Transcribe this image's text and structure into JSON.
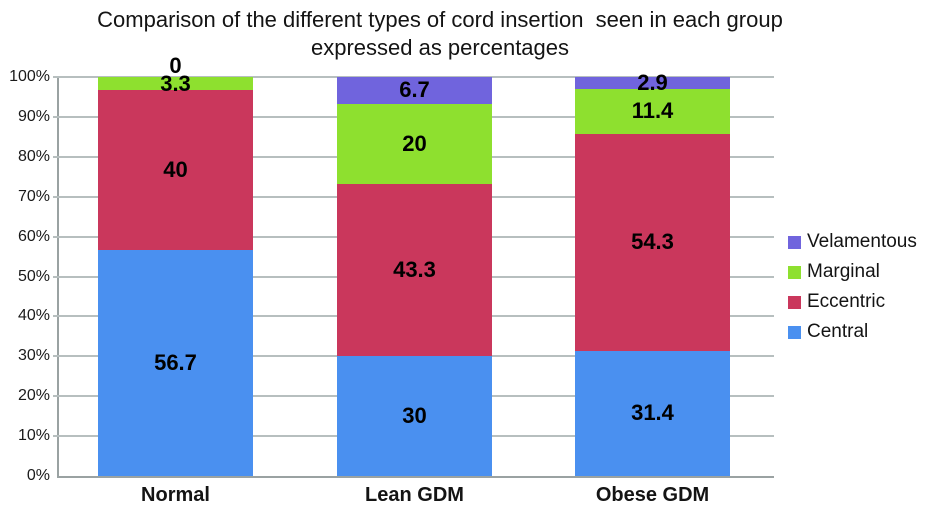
{
  "figure": {
    "title_lines": [
      "Comparison of the different types of cord insertion  seen in each group",
      "expressed as percentages"
    ]
  },
  "chart_data": {
    "type": "bar",
    "stacked": true,
    "units": "percent",
    "title": "Comparison of the different types of cord insertion seen in each group expressed as percentages",
    "categories": [
      "Normal",
      "Lean GDM",
      "Obese GDM"
    ],
    "series": [
      {
        "name": "Central",
        "color": "#4a90f0",
        "values": [
          56.7,
          30,
          31.4
        ]
      },
      {
        "name": "Eccentric",
        "color": "#ca375c",
        "values": [
          40,
          43.3,
          54.3
        ]
      },
      {
        "name": "Marginal",
        "color": "#8ee02f",
        "values": [
          3.3,
          20,
          11.4
        ]
      },
      {
        "name": "Velamentous",
        "color": "#7064dd",
        "values": [
          0,
          6.7,
          2.9
        ]
      }
    ],
    "ylim": [
      0,
      100
    ],
    "y_tick_step": 10,
    "y_ticks": [
      "0%",
      "10%",
      "20%",
      "30%",
      "40%",
      "50%",
      "60%",
      "70%",
      "80%",
      "90%",
      "100%"
    ],
    "grid": true,
    "legend": {
      "position": "right",
      "order": [
        "Velamentous",
        "Marginal",
        "Eccentric",
        "Central"
      ]
    }
  },
  "style": {
    "grid_color": "#b7bfbf",
    "axis_color": "#9aa2a2",
    "text_color": "#141414"
  }
}
